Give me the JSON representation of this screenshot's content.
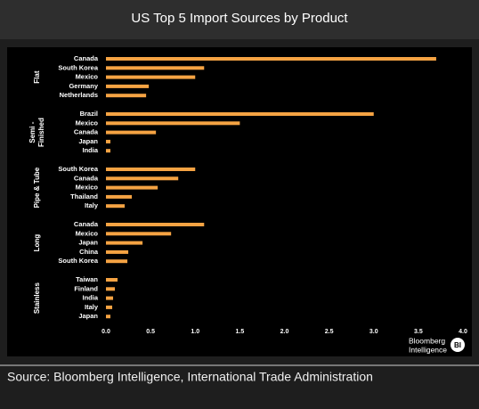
{
  "chart_data": {
    "type": "bar",
    "orientation": "horizontal",
    "title": "US Top 5 Import Sources by Product",
    "color": "#f5a343",
    "xlim": [
      0,
      4
    ],
    "xticks": [
      {
        "value": 0,
        "label": "0.0"
      },
      0.5,
      {
        "value": 1,
        "label": "1.0"
      },
      1.5,
      {
        "value": 2,
        "label": "2.0"
      },
      2.5,
      {
        "value": 3,
        "label": "3.0"
      },
      3.5,
      {
        "value": 4,
        "label": "4.0"
      }
    ],
    "groups": [
      {
        "label": [
          "Flat"
        ],
        "categories": [
          "Canada",
          "South Korea",
          "Mexico",
          "Germany",
          "Netherlands"
        ],
        "values": [
          3.7,
          1.1,
          1.0,
          0.48,
          0.45
        ]
      },
      {
        "label": [
          "Semi -",
          "Finished"
        ],
        "categories": [
          "Brazil",
          "Mexico",
          "Canada",
          "Japan",
          "India"
        ],
        "values": [
          3.0,
          1.5,
          0.56,
          0.05,
          0.05
        ]
      },
      {
        "label": [
          "Pipe & Tube"
        ],
        "categories": [
          "South Korea",
          "Canada",
          "Mexico",
          "Thailand",
          "Italy"
        ],
        "values": [
          1.0,
          0.81,
          0.58,
          0.29,
          0.21
        ]
      },
      {
        "label": [
          "Long"
        ],
        "categories": [
          "Canada",
          "Mexico",
          "Japan",
          "China",
          "South Korea"
        ],
        "values": [
          1.1,
          0.73,
          0.41,
          0.25,
          0.24
        ]
      },
      {
        "label": [
          "Stainless"
        ],
        "categories": [
          "Taiwan",
          "Finland",
          "India",
          "Italy",
          "Japan"
        ],
        "values": [
          0.13,
          0.1,
          0.08,
          0.07,
          0.05
        ]
      }
    ]
  },
  "branding": {
    "lines": [
      "Bloomberg",
      "Intelligence"
    ],
    "logo": "BI"
  },
  "footer": {
    "source": "Source: Bloomberg Intelligence, International Trade Administration"
  }
}
